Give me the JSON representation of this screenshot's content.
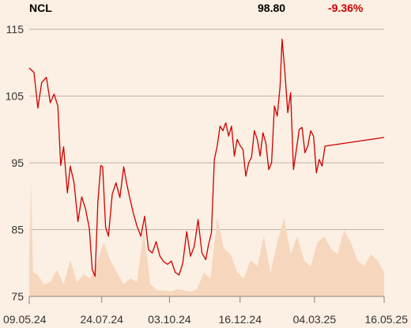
{
  "header": {
    "symbol": "NCL",
    "last_price": "98.80",
    "change_pct": "-9.36%"
  },
  "colors": {
    "background": "#fcefe3",
    "price_line": "#cc0000",
    "volume_fill": "#f6d7bd",
    "gridline": "#bfb3a7",
    "change_negative": "#cc0000"
  },
  "chart_data": {
    "type": "line",
    "title": "NCL",
    "ylim": [
      75,
      115
    ],
    "y_ticks": [
      "75",
      "85",
      "95",
      "105",
      "115"
    ],
    "x_tick_labels": [
      "09.05.24",
      "24.07.24",
      "03.10.24",
      "16.12.24",
      "04.03.25",
      "16.05.25"
    ],
    "x_range": [
      "09.05.24",
      "16.05.25"
    ],
    "grid": "horizontal",
    "price_series": [
      [
        "09.05.24",
        109.2
      ],
      [
        "14.05.24",
        108.5
      ],
      [
        "18.05.24",
        103.2
      ],
      [
        "22.05.24",
        107.0
      ],
      [
        "27.05.24",
        107.8
      ],
      [
        "31.05.24",
        104.0
      ],
      [
        "04.06.24",
        105.3
      ],
      [
        "08.06.24",
        103.5
      ],
      [
        "11.06.24",
        94.6
      ],
      [
        "14.06.24",
        97.4
      ],
      [
        "18.06.24",
        90.5
      ],
      [
        "21.06.24",
        94.5
      ],
      [
        "25.06.24",
        92.0
      ],
      [
        "29.06.24",
        86.2
      ],
      [
        "03.07.24",
        89.9
      ],
      [
        "07.07.24",
        88.1
      ],
      [
        "11.07.24",
        85.2
      ],
      [
        "14.07.24",
        79.0
      ],
      [
        "17.07.24",
        78.0
      ],
      [
        "20.07.24",
        89.3
      ],
      [
        "23.07.24",
        94.6
      ],
      [
        "25.07.24",
        94.4
      ],
      [
        "28.07.24",
        85.4
      ],
      [
        "31.07.24",
        84.0
      ],
      [
        "04.08.24",
        90.3
      ],
      [
        "08.08.24",
        92.0
      ],
      [
        "12.08.24",
        89.8
      ],
      [
        "16.08.24",
        94.4
      ],
      [
        "19.08.24",
        92.0
      ],
      [
        "22.08.24",
        90.0
      ],
      [
        "26.08.24",
        87.5
      ],
      [
        "30.08.24",
        85.5
      ],
      [
        "03.09.24",
        84.0
      ],
      [
        "07.09.24",
        87.0
      ],
      [
        "11.09.24",
        82.0
      ],
      [
        "15.09.24",
        81.5
      ],
      [
        "19.09.24",
        83.2
      ],
      [
        "23.09.24",
        81.0
      ],
      [
        "27.09.24",
        80.2
      ],
      [
        "01.10.24",
        79.8
      ],
      [
        "05.10.24",
        80.3
      ],
      [
        "09.10.24",
        78.6
      ],
      [
        "13.10.24",
        78.2
      ],
      [
        "17.10.24",
        80.0
      ],
      [
        "21.10.24",
        84.7
      ],
      [
        "25.10.24",
        81.0
      ],
      [
        "29.10.24",
        82.5
      ],
      [
        "02.11.24",
        86.5
      ],
      [
        "06.11.24",
        81.5
      ],
      [
        "10.11.24",
        80.5
      ],
      [
        "13.11.24",
        82.8
      ],
      [
        "16.11.24",
        84.5
      ],
      [
        "19.11.24",
        95.5
      ],
      [
        "22.11.24",
        97.5
      ],
      [
        "25.11.24",
        100.5
      ],
      [
        "28.11.24",
        99.8
      ],
      [
        "01.12.24",
        101.0
      ],
      [
        "04.12.24",
        99.0
      ],
      [
        "07.12.24",
        100.5
      ],
      [
        "10.12.24",
        96.0
      ],
      [
        "13.12.24",
        98.5
      ],
      [
        "16.12.24",
        97.6
      ],
      [
        "19.12.24",
        97.0
      ],
      [
        "22.12.24",
        93.0
      ],
      [
        "25.12.24",
        95.0
      ],
      [
        "28.12.24",
        95.8
      ],
      [
        "31.12.24",
        99.8
      ],
      [
        "03.01.25",
        98.5
      ],
      [
        "06.01.25",
        96.0
      ],
      [
        "09.01.25",
        99.5
      ],
      [
        "12.01.25",
        98.0
      ],
      [
        "15.01.25",
        94.0
      ],
      [
        "18.01.25",
        95.0
      ],
      [
        "21.01.25",
        103.5
      ],
      [
        "24.01.25",
        102.0
      ],
      [
        "27.01.25",
        106.5
      ],
      [
        "29.01.25",
        113.5
      ],
      [
        "01.02.25",
        108.5
      ],
      [
        "04.02.25",
        102.5
      ],
      [
        "07.02.25",
        105.5
      ],
      [
        "10.02.25",
        94.0
      ],
      [
        "13.02.25",
        97.0
      ],
      [
        "16.02.25",
        100.0
      ],
      [
        "19.02.25",
        100.3
      ],
      [
        "22.02.25",
        96.5
      ],
      [
        "25.02.25",
        97.5
      ],
      [
        "28.02.25",
        99.8
      ],
      [
        "03.03.25",
        99.0
      ],
      [
        "06.03.25",
        93.5
      ],
      [
        "09.03.25",
        95.5
      ],
      [
        "12.03.25",
        94.5
      ],
      [
        "15.03.25",
        97.5
      ],
      [
        "16.05.25",
        98.8
      ]
    ],
    "volume_series": [
      [
        "09.05.24",
        0.35
      ],
      [
        "11.05.24",
        0.95
      ],
      [
        "13.05.24",
        0.2
      ],
      [
        "18.05.24",
        0.18
      ],
      [
        "24.05.24",
        0.1
      ],
      [
        "31.05.24",
        0.12
      ],
      [
        "07.06.24",
        0.22
      ],
      [
        "14.06.24",
        0.1
      ],
      [
        "21.06.24",
        0.3
      ],
      [
        "28.06.24",
        0.12
      ],
      [
        "05.07.24",
        0.18
      ],
      [
        "12.07.24",
        0.15
      ],
      [
        "19.07.24",
        0.28
      ],
      [
        "26.07.24",
        0.45
      ],
      [
        "02.08.24",
        0.3
      ],
      [
        "09.08.24",
        0.2
      ],
      [
        "16.08.24",
        0.1
      ],
      [
        "23.08.24",
        0.15
      ],
      [
        "30.08.24",
        0.12
      ],
      [
        "06.09.24",
        0.55
      ],
      [
        "13.09.24",
        0.1
      ],
      [
        "20.09.24",
        0.05
      ],
      [
        "27.09.24",
        0.05
      ],
      [
        "04.10.24",
        0.04
      ],
      [
        "11.10.24",
        0.06
      ],
      [
        "18.10.24",
        0.05
      ],
      [
        "25.10.24",
        0.04
      ],
      [
        "01.11.24",
        0.06
      ],
      [
        "08.11.24",
        0.2
      ],
      [
        "15.11.24",
        0.15
      ],
      [
        "22.11.24",
        0.65
      ],
      [
        "29.11.24",
        0.4
      ],
      [
        "06.12.24",
        0.35
      ],
      [
        "13.12.24",
        0.2
      ],
      [
        "20.12.24",
        0.15
      ],
      [
        "27.12.24",
        0.3
      ],
      [
        "03.01.25",
        0.25
      ],
      [
        "10.01.25",
        0.5
      ],
      [
        "17.01.25",
        0.2
      ],
      [
        "24.01.25",
        0.45
      ],
      [
        "31.01.25",
        0.65
      ],
      [
        "07.02.25",
        0.35
      ],
      [
        "14.02.25",
        0.5
      ],
      [
        "21.02.25",
        0.3
      ],
      [
        "28.02.25",
        0.25
      ],
      [
        "07.03.25",
        0.45
      ],
      [
        "14.03.25",
        0.5
      ],
      [
        "21.03.25",
        0.4
      ],
      [
        "28.03.25",
        0.35
      ],
      [
        "04.04.25",
        0.55
      ],
      [
        "11.04.25",
        0.45
      ],
      [
        "18.04.25",
        0.3
      ],
      [
        "25.04.25",
        0.25
      ],
      [
        "02.05.25",
        0.35
      ],
      [
        "09.05.25",
        0.3
      ],
      [
        "16.05.25",
        0.2
      ]
    ]
  }
}
